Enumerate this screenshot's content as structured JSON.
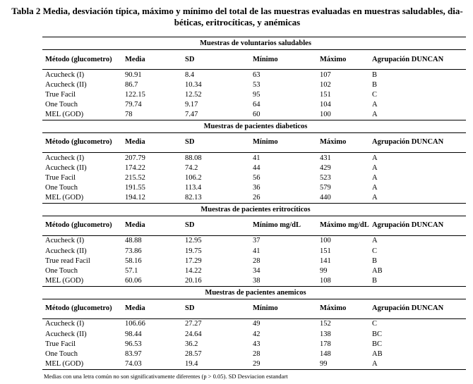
{
  "caption": "Tabla 2 Media, desviación típica, máximo y mínimo del total de las muestras evaluadas en muestras saludables, dia- béticas, eritrocíticas, y anémicas",
  "sections": [
    {
      "title": "Muestras de voluntarios saludables",
      "headers": [
        "Método (glucometro)",
        "Media",
        "SD",
        "Mínimo",
        "Máximo",
        "Agrupación DUNCAN"
      ],
      "rows": [
        [
          "Acucheck (I)",
          "90.91",
          "8.4",
          "63",
          "107",
          "B"
        ],
        [
          "Acucheck (II)",
          "86.7",
          "10.34",
          "53",
          "102",
          "B"
        ],
        [
          "True Facil",
          "122.15",
          "12.52",
          "95",
          "151",
          "C"
        ],
        [
          "One Touch",
          "79.74",
          "9.17",
          "64",
          "104",
          "A"
        ],
        [
          "MEL (GOD)",
          "78",
          "7.47",
          "60",
          "100",
          "A"
        ]
      ]
    },
    {
      "title": "Muestras de pacientes diabeticos",
      "headers": [
        "Método (glucometro)",
        "Media",
        "SD",
        "Mínimo",
        "Máximo",
        "Agrupación DUNCAN"
      ],
      "rows": [
        [
          "Acucheck (I)",
          "207.79",
          "88.08",
          "41",
          "431",
          "A"
        ],
        [
          "Acucheck (II)",
          "174.22",
          "74.2",
          "44",
          "429",
          "A"
        ],
        [
          "True Facil",
          "215.52",
          "106.2",
          "56",
          "523",
          "A"
        ],
        [
          "One Touch",
          "191.55",
          "113.4",
          "36",
          "579",
          "A"
        ],
        [
          "MEL (GOD)",
          "194.12",
          "82.13",
          "26",
          "440",
          "A"
        ]
      ]
    },
    {
      "title": "Muestras de pacientes eritrocíticos",
      "headers": [
        "Método (glucometro)",
        "Media",
        "SD",
        "Mínimo mg/dL",
        "Máximo mg/dL",
        "Agrupación DUNCAN"
      ],
      "rows": [
        [
          "Acucheck (I)",
          "48.88",
          "12.95",
          "37",
          "100",
          "A"
        ],
        [
          "Acucheck (II)",
          "73.86",
          "19.75",
          "41",
          "151",
          "C"
        ],
        [
          "True read Facil",
          "58.16",
          "17.29",
          "28",
          "141",
          "B"
        ],
        [
          "One Touch",
          "57.1",
          "14.22",
          "34",
          "99",
          "AB"
        ],
        [
          "MEL (GOD)",
          "60.06",
          "20.16",
          "38",
          "108",
          "B"
        ]
      ]
    },
    {
      "title": "Muestras de pacientes anemicos",
      "headers": [
        "Método (glucometro)",
        "Media",
        "SD",
        "Mínimo",
        "Máximo",
        "Agrupación DUNCAN"
      ],
      "rows": [
        [
          "Acucheck (I)",
          "106.66",
          "27.27",
          "49",
          "152",
          "C"
        ],
        [
          "Acucheck (II)",
          "98.44",
          "24.64",
          "42",
          "138",
          "BC"
        ],
        [
          "True Facil",
          "96.53",
          "36.2",
          "43",
          "178",
          "BC"
        ],
        [
          "One Touch",
          "83.97",
          "28.57",
          "28",
          "148",
          "AB"
        ],
        [
          "MEL (GOD)",
          "74.03",
          "19.4",
          "29",
          "99",
          "A"
        ]
      ]
    }
  ],
  "footnote": "Medias con una letra común no son significativamente diferentes (p > 0.05). SD Desviacion estandart"
}
